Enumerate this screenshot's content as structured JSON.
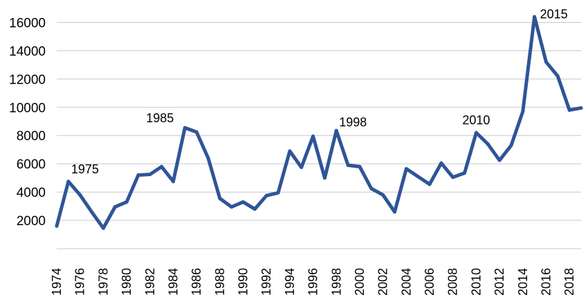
{
  "chart_data": {
    "type": "line",
    "title": "",
    "xlabel": "",
    "ylabel": "",
    "x": [
      1974,
      1975,
      1976,
      1977,
      1978,
      1979,
      1980,
      1981,
      1982,
      1983,
      1984,
      1985,
      1986,
      1987,
      1988,
      1989,
      1990,
      1991,
      1992,
      1993,
      1994,
      1995,
      1996,
      1997,
      1998,
      1999,
      2000,
      2001,
      2002,
      2003,
      2004,
      2005,
      2006,
      2007,
      2008,
      2009,
      2010,
      2011,
      2012,
      2013,
      2014,
      2015,
      2016,
      2017,
      2018,
      2019
    ],
    "x_tick_labels": [
      "1974",
      "1976",
      "1978",
      "1980",
      "1982",
      "1984",
      "1986",
      "1988",
      "1990",
      "1992",
      "1994",
      "1996",
      "1998",
      "2000",
      "2002",
      "2004",
      "2006",
      "2008",
      "2010",
      "2012",
      "2014",
      "2016",
      "2018"
    ],
    "y_tick_labels": [
      "2000",
      "4000",
      "6000",
      "8000",
      "10000",
      "12000",
      "14000",
      "16000"
    ],
    "y_ticks": [
      2000,
      4000,
      6000,
      8000,
      10000,
      12000,
      14000,
      16000
    ],
    "ylim": [
      0,
      17000
    ],
    "grid": true,
    "legend": "none",
    "series": [
      {
        "color": "#2f5597",
        "values": [
          1600,
          4750,
          3800,
          2600,
          1450,
          2950,
          3300,
          5200,
          5250,
          5800,
          4750,
          8550,
          8250,
          6400,
          3550,
          2950,
          3300,
          2800,
          3750,
          3950,
          6900,
          5750,
          7950,
          5000,
          8350,
          5900,
          5800,
          4250,
          3800,
          2600,
          5650,
          5100,
          4550,
          6050,
          5050,
          5350,
          8200,
          7400,
          6250,
          7300,
          9700,
          16400,
          13200,
          12200,
          9800,
          9950
        ]
      }
    ],
    "annotations": [
      {
        "text": "1975",
        "x": 1975,
        "y": 4750
      },
      {
        "text": "1985",
        "x": 1985,
        "y": 8550
      },
      {
        "text": "1998",
        "x": 1998,
        "y": 8350
      },
      {
        "text": "2010",
        "x": 2010,
        "y": 8200
      },
      {
        "text": "2015",
        "x": 2015,
        "y": 16400
      }
    ]
  }
}
